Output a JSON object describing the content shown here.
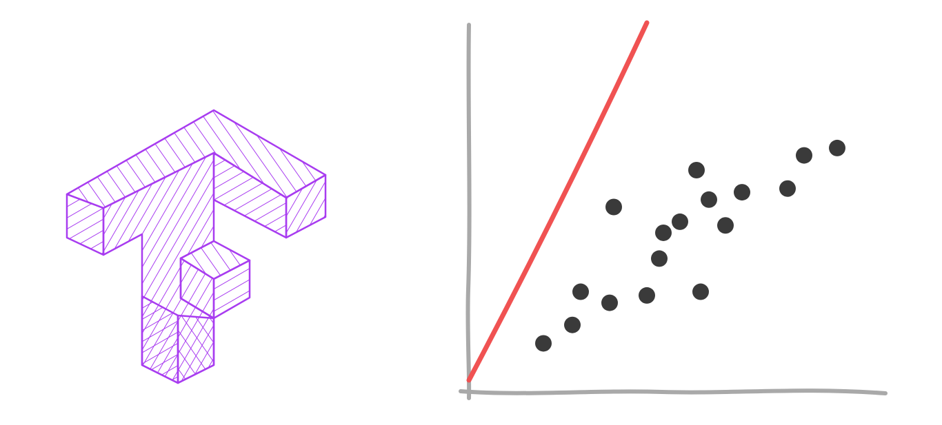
{
  "logo": {
    "icon": "tensorflow-logo-icon",
    "color": "#a83cf0",
    "style": "hand-drawn hatched isometric"
  },
  "chart_data": {
    "type": "scatter",
    "title": "",
    "xlabel": "",
    "ylabel": "",
    "grid": false,
    "xlim": [
      0,
      10
    ],
    "ylim": [
      0,
      10
    ],
    "axis_color": "#a9a9a9",
    "series": [
      {
        "kind": "points",
        "color": "#3a3a3a",
        "points": [
          [
            1.8,
            1.3
          ],
          [
            2.5,
            1.8
          ],
          [
            2.7,
            2.7
          ],
          [
            3.4,
            2.4
          ],
          [
            3.5,
            5.0
          ],
          [
            4.3,
            2.6
          ],
          [
            4.6,
            3.6
          ],
          [
            4.7,
            4.3
          ],
          [
            5.1,
            4.6
          ],
          [
            5.6,
            2.7
          ],
          [
            5.5,
            6.0
          ],
          [
            5.8,
            5.2
          ],
          [
            6.2,
            4.5
          ],
          [
            6.6,
            5.4
          ],
          [
            7.7,
            5.5
          ],
          [
            8.1,
            6.4
          ],
          [
            8.9,
            6.6
          ]
        ]
      },
      {
        "kind": "line",
        "color": "#f05252",
        "points": [
          [
            0.0,
            0.3
          ],
          [
            4.3,
            10.0
          ]
        ]
      }
    ]
  }
}
